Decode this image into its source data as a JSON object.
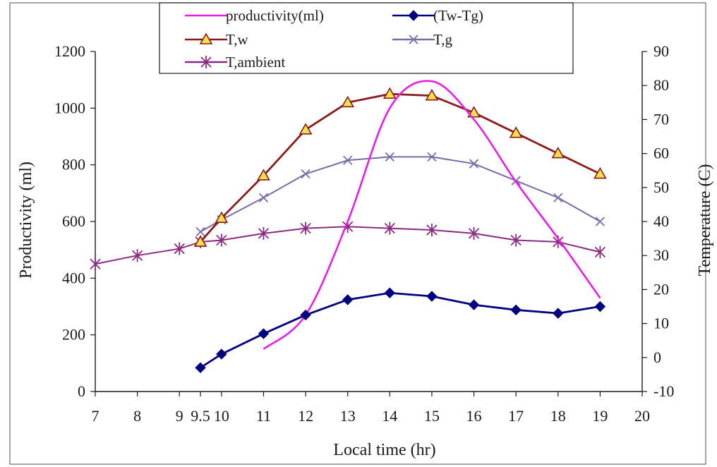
{
  "chart_data": {
    "type": "line",
    "title": "",
    "xlabel": "Local time (hr)",
    "ylabel_left": "Productivity (ml)",
    "ylabel_right": "Temperature (C)",
    "xlim": [
      7,
      20
    ],
    "ylim_left": [
      0,
      1200
    ],
    "ylim_right": [
      -10,
      90
    ],
    "x_ticks": [
      {
        "value": 7,
        "label": "7"
      },
      {
        "value": 8,
        "label": "8"
      },
      {
        "value": 9,
        "label": "9"
      },
      {
        "value": 9.5,
        "label": "9.5"
      },
      {
        "value": 10,
        "label": "10"
      },
      {
        "value": 11,
        "label": "11"
      },
      {
        "value": 12,
        "label": "12"
      },
      {
        "value": 13,
        "label": "13"
      },
      {
        "value": 14,
        "label": "14"
      },
      {
        "value": 15,
        "label": "15"
      },
      {
        "value": 16,
        "label": "16"
      },
      {
        "value": 17,
        "label": "17"
      },
      {
        "value": 18,
        "label": "18"
      },
      {
        "value": 19,
        "label": "19"
      },
      {
        "value": 20,
        "label": "20"
      }
    ],
    "y_left_ticks": [
      {
        "value": 0,
        "label": "0"
      },
      {
        "value": 200,
        "label": "200"
      },
      {
        "value": 400,
        "label": "400"
      },
      {
        "value": 600,
        "label": "600"
      },
      {
        "value": 800,
        "label": "800"
      },
      {
        "value": 1000,
        "label": "1000"
      },
      {
        "value": 1200,
        "label": "1200"
      }
    ],
    "y_right_ticks": [
      {
        "value": -10,
        "label": "-10"
      },
      {
        "value": 0,
        "label": "0"
      },
      {
        "value": 10,
        "label": "10"
      },
      {
        "value": 20,
        "label": "20"
      },
      {
        "value": 30,
        "label": "30"
      },
      {
        "value": 40,
        "label": "40"
      },
      {
        "value": 50,
        "label": "50"
      },
      {
        "value": 60,
        "label": "60"
      },
      {
        "value": 70,
        "label": "70"
      },
      {
        "value": 80,
        "label": "80"
      },
      {
        "value": 90,
        "label": "90"
      }
    ],
    "grid": false,
    "legend_position": "top-center",
    "series": [
      {
        "key": "productivity",
        "name": "productivity(ml)",
        "axis": "left",
        "color": "#e61ee6",
        "marker": "none",
        "smooth": true,
        "points": [
          [
            11,
            150
          ],
          [
            12,
            270
          ],
          [
            13,
            600
          ],
          [
            14,
            1000
          ],
          [
            15,
            1095
          ],
          [
            16,
            960
          ],
          [
            17,
            740
          ],
          [
            18,
            540
          ],
          [
            19,
            330
          ]
        ]
      },
      {
        "key": "tw_minus_tg",
        "name": "(Tw-Tg)",
        "axis": "right",
        "color": "#000080",
        "marker": "diamond",
        "smooth": false,
        "points": [
          [
            9.5,
            -3
          ],
          [
            10,
            1
          ],
          [
            11,
            7
          ],
          [
            12,
            12.5
          ],
          [
            13,
            17
          ],
          [
            14,
            19
          ],
          [
            15,
            18
          ],
          [
            16,
            15.5
          ],
          [
            17,
            14
          ],
          [
            18,
            13
          ],
          [
            19,
            15
          ]
        ]
      },
      {
        "key": "t_w",
        "name": "T,w",
        "axis": "right",
        "color": "#8b1a1a",
        "marker": "triangle",
        "marker_fill": "#f5e04a",
        "smooth": false,
        "points": [
          [
            9.5,
            34
          ],
          [
            10,
            41
          ],
          [
            11,
            53.5
          ],
          [
            12,
            67
          ],
          [
            13,
            75
          ],
          [
            14,
            77.5
          ],
          [
            15,
            77
          ],
          [
            16,
            72
          ],
          [
            17,
            66
          ],
          [
            18,
            60
          ],
          [
            19,
            54
          ]
        ]
      },
      {
        "key": "t_g",
        "name": "T,g",
        "axis": "right",
        "color": "#7a6aa8",
        "marker": "x",
        "smooth": false,
        "points": [
          [
            9.5,
            37
          ],
          [
            10,
            40.5
          ],
          [
            11,
            47
          ],
          [
            12,
            54
          ],
          [
            13,
            58
          ],
          [
            14,
            59
          ],
          [
            15,
            59
          ],
          [
            16,
            57
          ],
          [
            17,
            52
          ],
          [
            18,
            47
          ],
          [
            19,
            40
          ]
        ]
      },
      {
        "key": "t_ambient",
        "name": "T,ambient",
        "axis": "right",
        "color": "#8a2a80",
        "marker": "asterisk",
        "smooth": false,
        "points": [
          [
            7,
            27.5
          ],
          [
            8,
            30
          ],
          [
            9,
            32
          ],
          [
            9.5,
            34
          ],
          [
            10,
            34.5
          ],
          [
            11,
            36.5
          ],
          [
            12,
            38
          ],
          [
            13,
            38.5
          ],
          [
            14,
            38
          ],
          [
            15,
            37.5
          ],
          [
            16,
            36.5
          ],
          [
            17,
            34.5
          ],
          [
            18,
            34
          ],
          [
            19,
            31
          ]
        ]
      }
    ],
    "legend": [
      {
        "series": "productivity",
        "label": "productivity(ml)"
      },
      {
        "series": "tw_minus_tg",
        "label": "(Tw-Tg)"
      },
      {
        "series": "t_w",
        "label": "T,w"
      },
      {
        "series": "t_g",
        "label": "T,g"
      },
      {
        "series": "t_ambient",
        "label": "T,ambient"
      }
    ]
  }
}
